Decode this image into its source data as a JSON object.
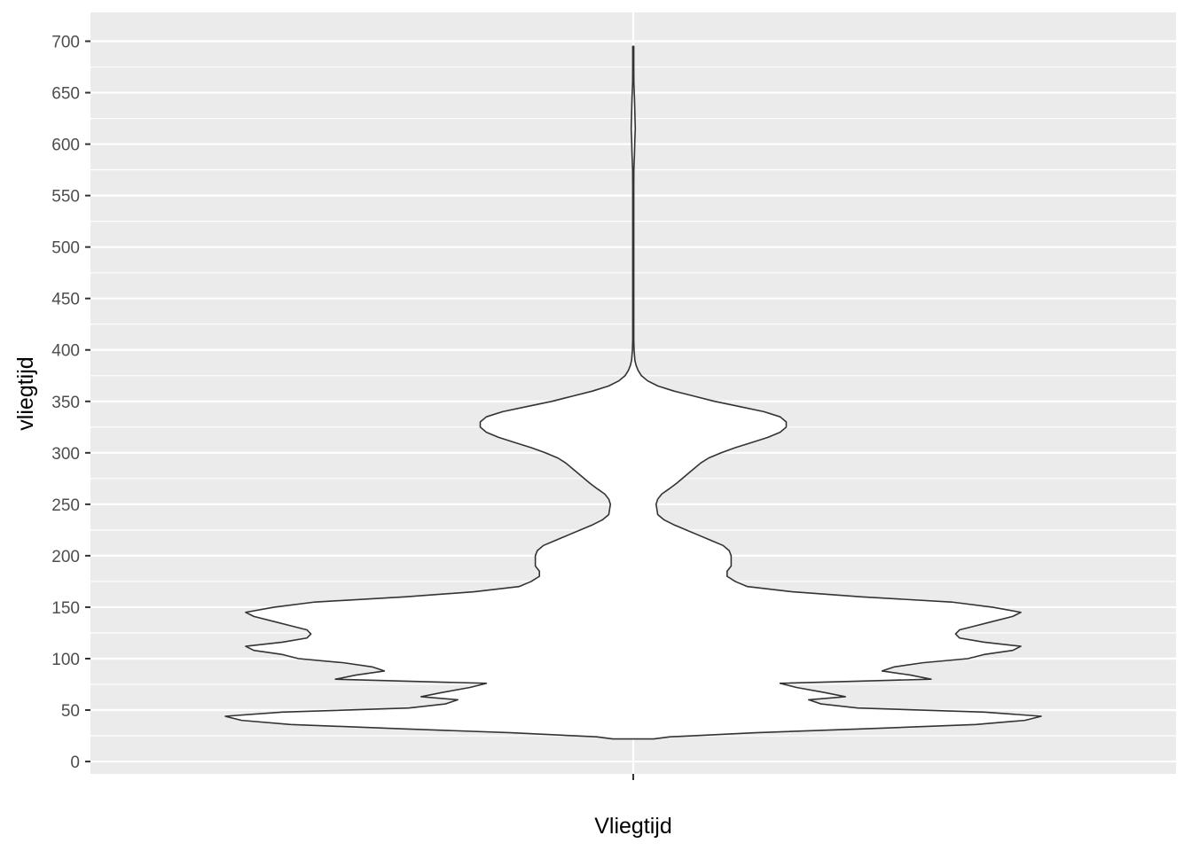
{
  "chart_data": {
    "type": "violin",
    "xlabel": "Vliegtijd",
    "ylabel": "vliegtijd",
    "categories": [
      ""
    ],
    "ylim": [
      -12,
      728
    ],
    "yticks": [
      0,
      50,
      100,
      150,
      200,
      250,
      300,
      350,
      400,
      450,
      500,
      550,
      600,
      650,
      700
    ],
    "ytick_labels": [
      "0",
      "50",
      "100",
      "150",
      "200",
      "250",
      "300",
      "350",
      "400",
      "450",
      "500",
      "550",
      "600",
      "650",
      "700"
    ],
    "grid": true,
    "legend": "none",
    "panel_color": "#ebebeb",
    "grid_color": "#ffffff",
    "fill_color": "#ffffff",
    "outline_color": "#333333",
    "violin": {
      "y_min": 22,
      "y_max": 695,
      "density_profile": [
        [
          22,
          0.05
        ],
        [
          24,
          0.09
        ],
        [
          28,
          0.3
        ],
        [
          32,
          0.58
        ],
        [
          36,
          0.84
        ],
        [
          40,
          0.96
        ],
        [
          44,
          1.0
        ],
        [
          48,
          0.86
        ],
        [
          52,
          0.55
        ],
        [
          56,
          0.46
        ],
        [
          60,
          0.43
        ],
        [
          63,
          0.52
        ],
        [
          67,
          0.47
        ],
        [
          72,
          0.4
        ],
        [
          76,
          0.36
        ],
        [
          80,
          0.73
        ],
        [
          84,
          0.68
        ],
        [
          88,
          0.61
        ],
        [
          92,
          0.64
        ],
        [
          96,
          0.71
        ],
        [
          100,
          0.82
        ],
        [
          104,
          0.86
        ],
        [
          108,
          0.93
        ],
        [
          112,
          0.95
        ],
        [
          116,
          0.86
        ],
        [
          120,
          0.8
        ],
        [
          124,
          0.79
        ],
        [
          128,
          0.8
        ],
        [
          132,
          0.84
        ],
        [
          136,
          0.88
        ],
        [
          141,
          0.93
        ],
        [
          145,
          0.95
        ],
        [
          150,
          0.88
        ],
        [
          155,
          0.78
        ],
        [
          160,
          0.56
        ],
        [
          165,
          0.39
        ],
        [
          170,
          0.28
        ],
        [
          175,
          0.25
        ],
        [
          180,
          0.23
        ],
        [
          185,
          0.23
        ],
        [
          190,
          0.24
        ],
        [
          195,
          0.24
        ],
        [
          200,
          0.24
        ],
        [
          205,
          0.235
        ],
        [
          210,
          0.22
        ],
        [
          215,
          0.19
        ],
        [
          220,
          0.16
        ],
        [
          225,
          0.13
        ],
        [
          230,
          0.1
        ],
        [
          235,
          0.075
        ],
        [
          240,
          0.06
        ],
        [
          245,
          0.058
        ],
        [
          250,
          0.056
        ],
        [
          255,
          0.06
        ],
        [
          260,
          0.07
        ],
        [
          265,
          0.088
        ],
        [
          270,
          0.105
        ],
        [
          275,
          0.12
        ],
        [
          280,
          0.135
        ],
        [
          285,
          0.15
        ],
        [
          290,
          0.165
        ],
        [
          295,
          0.185
        ],
        [
          300,
          0.215
        ],
        [
          305,
          0.25
        ],
        [
          310,
          0.29
        ],
        [
          315,
          0.33
        ],
        [
          320,
          0.36
        ],
        [
          325,
          0.375
        ],
        [
          330,
          0.375
        ],
        [
          335,
          0.36
        ],
        [
          340,
          0.32
        ],
        [
          345,
          0.26
        ],
        [
          350,
          0.2
        ],
        [
          355,
          0.15
        ],
        [
          360,
          0.1
        ],
        [
          365,
          0.06
        ],
        [
          370,
          0.035
        ],
        [
          375,
          0.02
        ],
        [
          380,
          0.012
        ],
        [
          385,
          0.007
        ],
        [
          390,
          0.004
        ],
        [
          400,
          0.002
        ],
        [
          410,
          0.0008
        ],
        [
          430,
          0.0004
        ],
        [
          480,
          0.0003
        ],
        [
          560,
          0.0003
        ],
        [
          575,
          0.0015
        ],
        [
          590,
          0.003
        ],
        [
          605,
          0.004
        ],
        [
          615,
          0.005
        ],
        [
          630,
          0.004
        ],
        [
          645,
          0.003
        ],
        [
          660,
          0.0015
        ],
        [
          675,
          0.0008
        ],
        [
          690,
          0.0003
        ],
        [
          695,
          0.0
        ]
      ]
    }
  }
}
